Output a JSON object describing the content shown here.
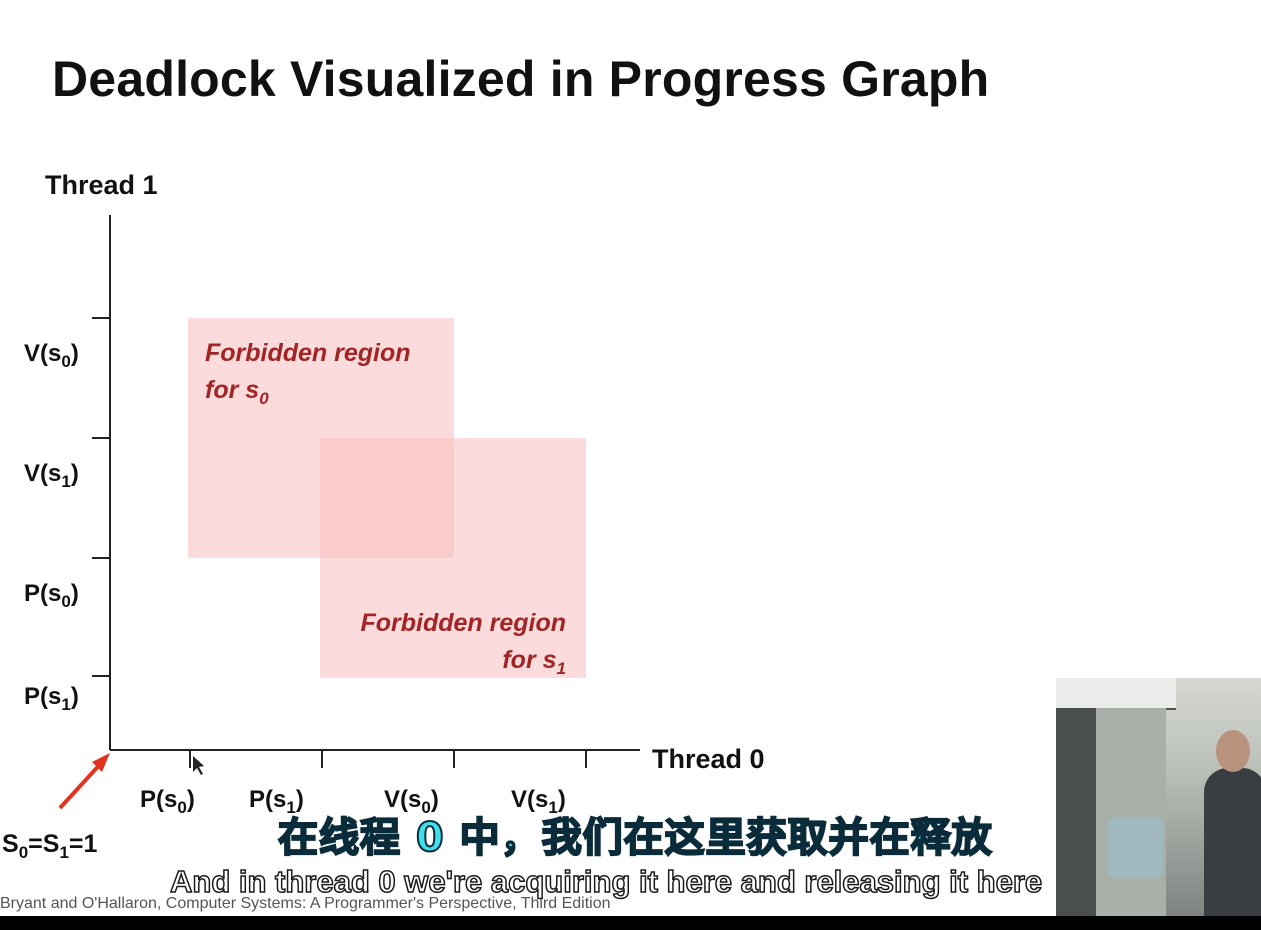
{
  "title": "Deadlock Visualized in Progress Graph",
  "axes": {
    "y_label": "Thread 1",
    "x_label": "Thread 0"
  },
  "y_ticks": [
    {
      "op": "V",
      "sem": "0"
    },
    {
      "op": "V",
      "sem": "1"
    },
    {
      "op": "P",
      "sem": "0"
    },
    {
      "op": "P",
      "sem": "1"
    }
  ],
  "x_ticks": [
    {
      "op": "P",
      "sem": "0"
    },
    {
      "op": "P",
      "sem": "1"
    },
    {
      "op": "V",
      "sem": "0"
    },
    {
      "op": "V",
      "sem": "1"
    }
  ],
  "regions": [
    {
      "line1": "Forbidden region",
      "line2": "for s",
      "sub": "0"
    },
    {
      "line1": "Forbidden region",
      "line2": "for s",
      "sub": "1"
    }
  ],
  "initial_state": {
    "s0": "S",
    "sub0": "0",
    "eq": "=S",
    "sub1": "1",
    "val": "=1"
  },
  "footer": "Bryant and O'Hallaron, Computer Systems: A Programmer's Perspective, Third Edition",
  "subtitles": {
    "chinese": "在线程 0 中，我们在这里获取并在释放",
    "english": "And in thread 0 we're acquiring it here and releasing it here"
  },
  "colors": {
    "region_fill": "#f8bebe",
    "region_text": "#a32424",
    "arrow": "#e0341f"
  }
}
